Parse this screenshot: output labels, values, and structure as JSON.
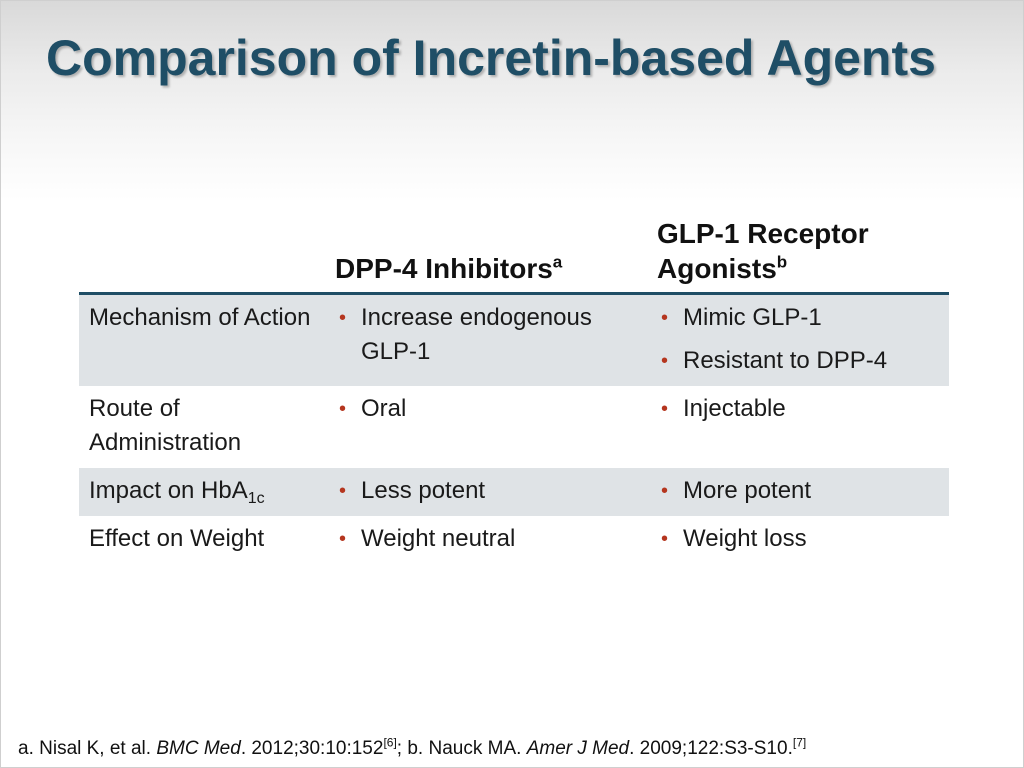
{
  "slide": {
    "title": "Comparison of Incretin-based Agents",
    "headers": {
      "col1": "",
      "col2": {
        "label": "DPP-4 Inhibitors",
        "sup": "a"
      },
      "col3": {
        "label": "GLP-1 Receptor Agonists",
        "sup": "b"
      }
    },
    "rows": [
      {
        "label": "Mechanism of Action",
        "shaded": true,
        "dpp4": [
          "Increase endogenous GLP-1"
        ],
        "glp1": [
          "Mimic GLP-1",
          "Resistant to DPP-4"
        ]
      },
      {
        "label": "Route of Administration",
        "shaded": false,
        "dpp4": [
          "Oral"
        ],
        "glp1": [
          "Injectable"
        ]
      },
      {
        "label": "Impact on HbA",
        "label_sub": "1c",
        "shaded": true,
        "dpp4": [
          "Less potent"
        ],
        "glp1": [
          "More potent"
        ]
      },
      {
        "label": "Effect on Weight",
        "shaded": false,
        "dpp4": [
          "Weight neutral"
        ],
        "glp1": [
          "Weight loss"
        ]
      }
    ],
    "bullet_glyph": "•",
    "footnote": {
      "a_prefix": "a. Nisal K, et al.",
      "a_journal": "BMC Med",
      "a_details": ". 2012;30:10:152",
      "a_ref": "[6]",
      "b_prefix": "; b. Nauck MA.",
      "b_journal": "Amer J Med",
      "b_details": ". 2009;122:S3-S10.",
      "b_ref": "[7]"
    }
  },
  "colors": {
    "title": "#1f4e66",
    "bullet": "#b5361f",
    "row_shade": "#dfe3e6",
    "header_rule": "#1f4e66"
  }
}
